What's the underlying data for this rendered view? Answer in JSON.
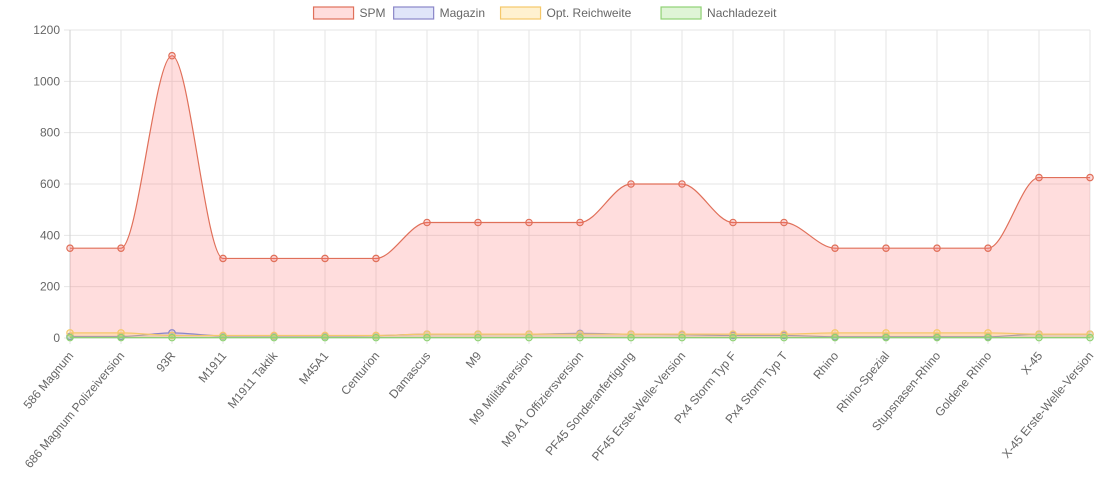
{
  "chart_data": {
    "type": "area",
    "categories": [
      "586 Magnum",
      "686 Magnum Polizeiversion",
      "93R",
      "M1911",
      "M1911 Taktik",
      "M45A1",
      "Centurion",
      "Damascus",
      "M9",
      "M9 Militärversion",
      "M9 A1 Offiziersversion",
      "PF45 Sonderanfertigung",
      "PF45 Erste-Welle-Version",
      "Px4 Storm Typ F",
      "Px4 Storm Typ T",
      "Rhino",
      "Rhino-Spezial",
      "Stupsnasen-Rhino",
      "Goldene Rhino",
      "X-45",
      "X-45 Erste-Welle-Version"
    ],
    "series": [
      {
        "name": "SPM",
        "color": "#e0705a",
        "fill": "rgba(255,99,99,0.22)",
        "values": [
          350,
          350,
          1100,
          310,
          310,
          310,
          310,
          450,
          450,
          450,
          450,
          600,
          600,
          450,
          450,
          350,
          350,
          350,
          350,
          625,
          625
        ]
      },
      {
        "name": "Magazin",
        "color": "#8a86c8",
        "fill": "rgba(130,150,230,0.25)",
        "values": [
          6,
          6,
          20,
          8,
          8,
          8,
          9,
          15,
          15,
          15,
          18,
          15,
          13,
          10,
          10,
          5,
          5,
          5,
          5,
          15,
          15
        ]
      },
      {
        "name": "Opt. Reichweite",
        "color": "#f5c86a",
        "fill": "rgba(255,210,100,0.30)",
        "values": [
          20,
          20,
          10,
          10,
          10,
          10,
          10,
          15,
          15,
          15,
          15,
          15,
          15,
          15,
          15,
          20,
          20,
          20,
          20,
          15,
          15
        ]
      },
      {
        "name": "Nachladezeit",
        "color": "#8fd174",
        "fill": "rgba(150,220,120,0.30)",
        "values": [
          1.5,
          1.5,
          1.5,
          1.5,
          1.5,
          1.5,
          1.5,
          1.5,
          1.5,
          1.5,
          1.5,
          1.5,
          1.5,
          1.5,
          1.5,
          1.5,
          1.5,
          1.5,
          1.5,
          1.5,
          1.5
        ]
      }
    ],
    "ylim": [
      0,
      1200
    ],
    "yticks": [
      "0",
      "200",
      "400",
      "600",
      "800",
      "1000",
      "1200"
    ],
    "grid": true,
    "legend_position": "top"
  }
}
